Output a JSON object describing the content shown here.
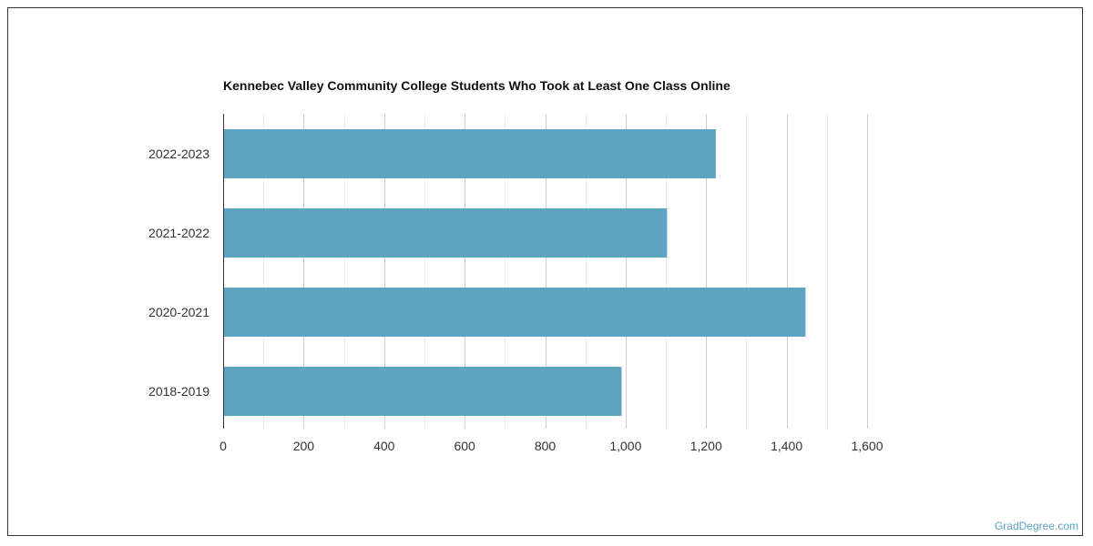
{
  "chart_data": {
    "type": "bar",
    "orientation": "horizontal",
    "title": "Kennebec Valley Community College Students Who Took at Least One Class Online",
    "categories": [
      "2022-2023",
      "2021-2022",
      "2020-2021",
      "2018-2019"
    ],
    "values": [
      1224,
      1103,
      1447,
      990
    ],
    "xlim": [
      0,
      1600
    ],
    "xticks": [
      0,
      200,
      400,
      600,
      800,
      1000,
      1200,
      1400,
      1600
    ],
    "xtick_labels": [
      "0",
      "200",
      "400",
      "600",
      "800",
      "1,000",
      "1,200",
      "1,400",
      "1,600"
    ],
    "grid": true,
    "bar_color": "#5ea3bf"
  },
  "watermark": "GradDegree.com"
}
